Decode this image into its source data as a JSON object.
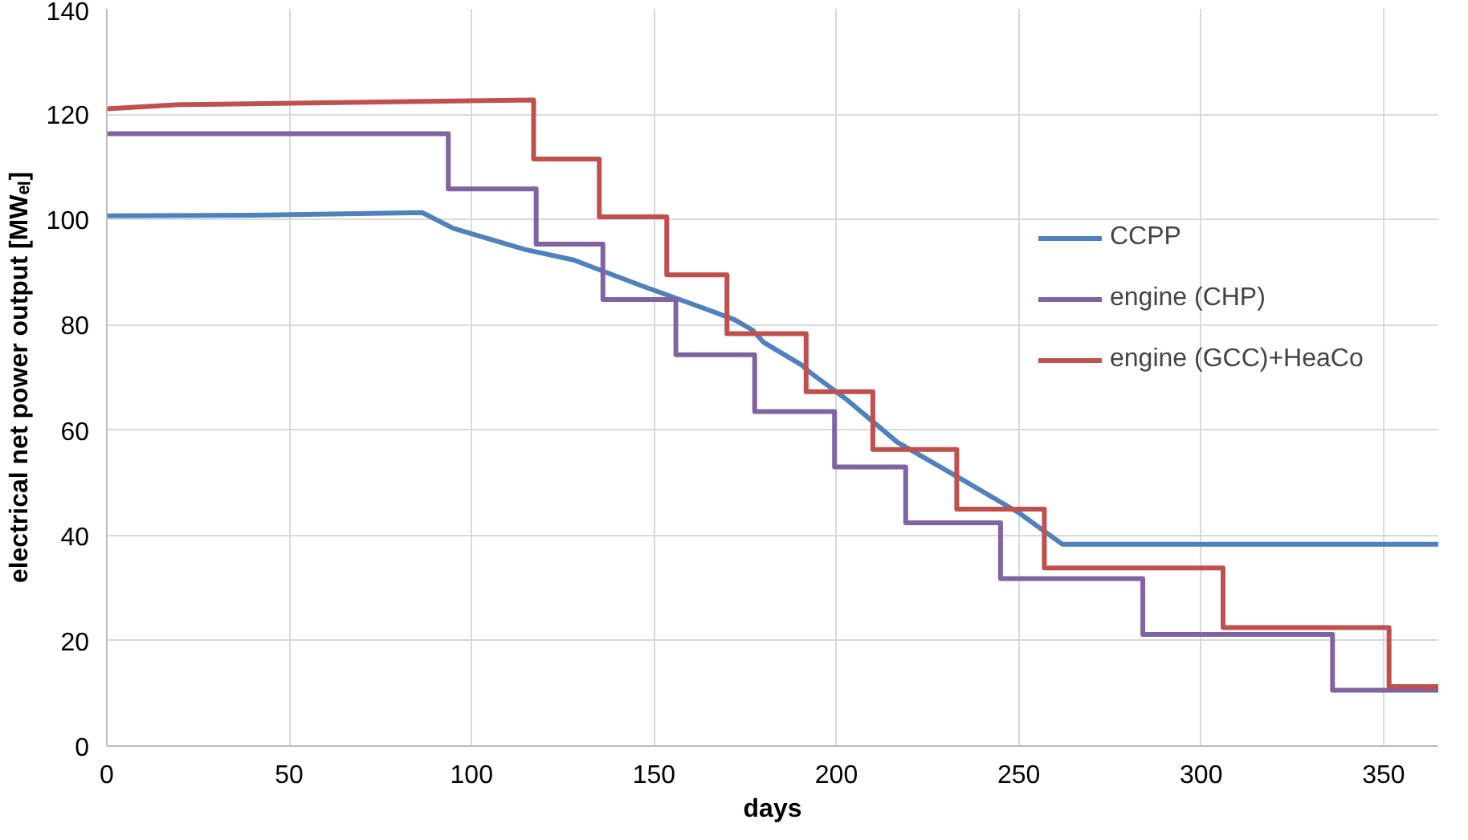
{
  "chart_data": {
    "type": "line",
    "xlabel": "days",
    "ylabel": "electrical net power output [MWₑₗ]",
    "xlim": [
      0,
      365
    ],
    "ylim": [
      0,
      140
    ],
    "xticks": [
      0,
      50,
      100,
      150,
      200,
      250,
      300,
      350
    ],
    "yticks": [
      0,
      20,
      40,
      60,
      80,
      100,
      120,
      140
    ],
    "grid": true,
    "legend": "right",
    "marker": "none",
    "line_style": "solid",
    "series": [
      {
        "name": "CCPP",
        "color": "#4f81bd",
        "x": [
          0,
          40,
          86.5,
          95,
          114.6,
          128,
          147,
          163,
          172,
          177,
          180,
          190.6,
          192.7,
          203,
          216.7,
          236,
          250,
          262,
          365
        ],
        "values": [
          100.7,
          100.8,
          101.3,
          98.3,
          94.3,
          92.3,
          87.3,
          83.3,
          81,
          79,
          76.7,
          72.3,
          71,
          65.7,
          57.7,
          50,
          44.3,
          38.3,
          38.3
        ]
      },
      {
        "name": "engine (CHP)",
        "color": "#8064a2",
        "x": [
          0,
          93.6,
          93.6,
          117.7,
          117.7,
          136,
          136,
          156,
          156,
          177.6,
          177.6,
          199.5,
          199.5,
          219,
          219,
          245,
          245,
          284,
          284,
          336,
          336,
          365
        ],
        "values": [
          116.3,
          116.3,
          105.8,
          105.8,
          95.3,
          95.3,
          84.8,
          84.8,
          74.3,
          74.3,
          63.5,
          63.5,
          53,
          53,
          42.4,
          42.4,
          31.8,
          31.8,
          21.2,
          21.2,
          10.6,
          10.6
        ]
      },
      {
        "name": "engine (GCC)+HeaCo",
        "color": "#c0504d",
        "x": [
          0,
          20,
          117,
          117,
          135,
          135,
          153.5,
          153.5,
          170,
          170,
          191.7,
          191.7,
          210,
          210,
          233,
          233,
          257,
          257,
          306,
          306,
          351.5,
          351.5,
          365
        ],
        "values": [
          121,
          121.8,
          122.7,
          111.5,
          111.5,
          100.5,
          100.5,
          89.5,
          89.5,
          78.3,
          78.3,
          67.3,
          67.3,
          56.3,
          56.3,
          45,
          45,
          33.8,
          33.8,
          22.5,
          22.5,
          11.3,
          11.3
        ]
      }
    ]
  }
}
